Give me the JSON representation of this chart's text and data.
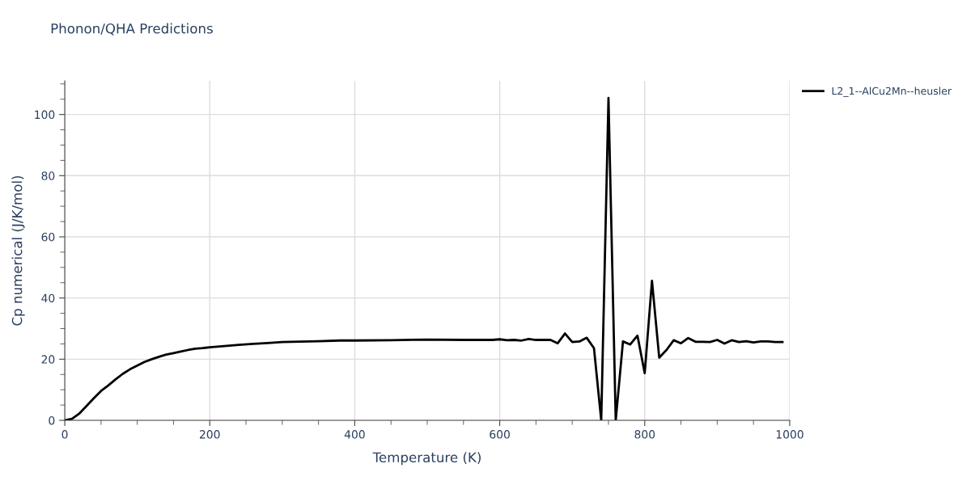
{
  "chart_data": {
    "type": "line",
    "title": "Phonon/QHA Predictions",
    "xlabel": "Temperature (K)",
    "ylabel": "Cp numerical (J/K/mol)",
    "x": [
      0,
      10,
      20,
      30,
      40,
      50,
      60,
      70,
      80,
      90,
      100,
      110,
      120,
      130,
      140,
      150,
      160,
      170,
      180,
      190,
      200,
      220,
      240,
      260,
      280,
      300,
      350,
      380,
      400,
      450,
      500,
      550,
      590,
      600,
      610,
      620,
      630,
      640,
      650,
      660,
      670,
      680,
      690,
      700,
      710,
      720,
      730,
      740,
      750,
      760,
      770,
      780,
      790,
      800,
      810,
      820,
      830,
      840,
      850,
      860,
      870,
      880,
      890,
      900,
      910,
      920,
      930,
      940,
      950,
      960,
      970,
      980,
      990
    ],
    "series": [
      {
        "name": "L2_1--AlCu2Mn--heusler",
        "color": "#000000",
        "values": [
          0,
          0.5,
          2.2,
          4.7,
          7.2,
          9.6,
          11.4,
          13.4,
          15.2,
          16.7,
          17.9,
          19.1,
          20.0,
          20.8,
          21.5,
          22.0,
          22.5,
          23.0,
          23.4,
          23.6,
          23.9,
          24.3,
          24.7,
          25.0,
          25.3,
          25.6,
          25.9,
          26.1,
          26.1,
          26.2,
          26.4,
          26.3,
          26.3,
          26.5,
          26.2,
          26.3,
          26.1,
          26.6,
          26.3,
          26.3,
          26.3,
          25.2,
          28.4,
          25.6,
          25.8,
          27.0,
          23.6,
          0,
          105.4,
          0,
          25.8,
          24.8,
          27.7,
          15.4,
          45.6,
          20.5,
          23.0,
          26.2,
          25.2,
          26.9,
          25.7,
          25.7,
          25.6,
          26.3,
          25.1,
          26.2,
          25.6,
          25.9,
          25.5,
          25.8,
          25.8,
          25.6,
          25.6
        ]
      }
    ],
    "xlim": [
      0,
      1000
    ],
    "xticks": [
      0,
      200,
      400,
      600,
      800,
      1000
    ],
    "ylim": [
      0,
      111
    ],
    "yticks": [
      0,
      20,
      40,
      60,
      80,
      100
    ],
    "grid": true,
    "legend": "top right",
    "marker": "none",
    "line_style": "solid"
  }
}
